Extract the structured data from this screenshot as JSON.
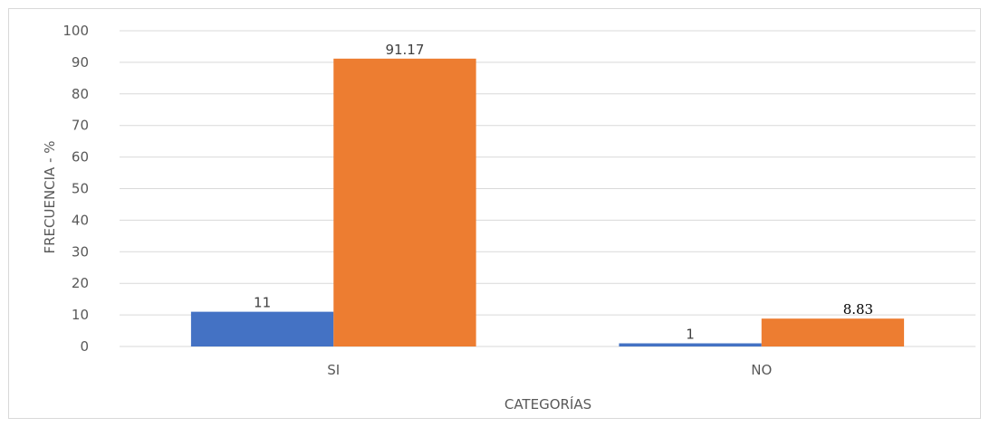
{
  "chart_data": {
    "type": "bar",
    "categories": [
      "SI",
      "NO"
    ],
    "series": [
      {
        "values": [
          11,
          1
        ],
        "labels": [
          "11",
          "1"
        ],
        "color": "#4472c4"
      },
      {
        "values": [
          91.17,
          8.83
        ],
        "labels": [
          "91.17",
          "8.83"
        ],
        "color": "#ed7d31"
      }
    ],
    "title": "",
    "xlabel": "CATEGORÍAS",
    "ylabel": "FRECUENCIA - %",
    "ylim": [
      0,
      100
    ],
    "yticks": [
      "0",
      "10",
      "20",
      "30",
      "40",
      "50",
      "60",
      "70",
      "80",
      "90",
      "100"
    ],
    "grid": true,
    "legend": "none"
  },
  "colors": {
    "gridline": "#d9d9d9",
    "axis_text": "#595959"
  }
}
